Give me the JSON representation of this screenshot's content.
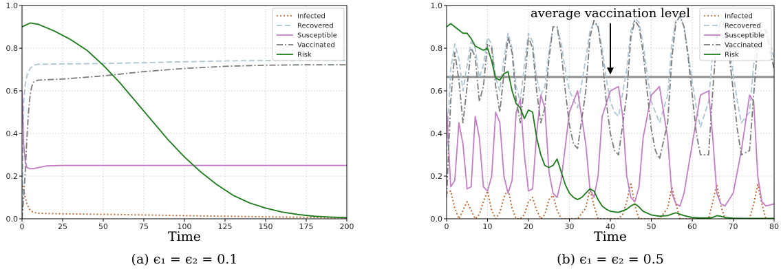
{
  "chart_data": [
    {
      "type": "line",
      "caption": "(a) ϵ₁ = ϵ₂ = 0.1",
      "xlabel": "Time",
      "ylabel": "",
      "xlim": [
        0,
        200
      ],
      "ylim": [
        0,
        1.0
      ],
      "xticks": [
        "0",
        "25",
        "50",
        "75",
        "100",
        "125",
        "150",
        "175",
        "200"
      ],
      "yticks": [
        "0.0",
        "0.2",
        "0.4",
        "0.6",
        "0.8",
        "1.0"
      ],
      "grid": true,
      "legend_position": "top-right",
      "series": [
        {
          "name": "Infected",
          "color": "#c0682f",
          "style": "dotted",
          "x": [
            0,
            1,
            2,
            3,
            5,
            7,
            10,
            15,
            20,
            30,
            50,
            75,
            100,
            125,
            150,
            175,
            200
          ],
          "y": [
            0.17,
            0.13,
            0.1,
            0.07,
            0.04,
            0.03,
            0.026,
            0.025,
            0.024,
            0.023,
            0.021,
            0.018,
            0.015,
            0.012,
            0.009,
            0.007,
            0.005
          ]
        },
        {
          "name": "Recovered",
          "color": "#a9c4d2",
          "style": "dashed",
          "x": [
            0,
            1,
            2,
            3,
            5,
            7,
            10,
            15,
            25,
            50,
            75,
            100,
            125,
            150,
            175,
            200
          ],
          "y": [
            0.0,
            0.55,
            0.63,
            0.67,
            0.705,
            0.72,
            0.725,
            0.725,
            0.726,
            0.728,
            0.732,
            0.736,
            0.74,
            0.742,
            0.742,
            0.742
          ]
        },
        {
          "name": "Susceptible",
          "color": "#c47cc4",
          "style": "solid",
          "x": [
            0,
            1,
            2,
            3,
            5,
            7,
            10,
            15,
            25,
            50,
            100,
            150,
            200
          ],
          "y": [
            0.6,
            0.35,
            0.27,
            0.24,
            0.235,
            0.235,
            0.24,
            0.248,
            0.25,
            0.25,
            0.25,
            0.25,
            0.25
          ]
        },
        {
          "name": "Vaccinated",
          "color": "#7a7a7a",
          "style": "dashdot",
          "x": [
            0,
            1,
            2,
            3,
            4,
            5,
            6,
            7,
            8,
            10,
            15,
            25,
            50,
            75,
            100,
            125,
            150,
            175,
            200
          ],
          "y": [
            0.0,
            0.1,
            0.22,
            0.38,
            0.5,
            0.58,
            0.62,
            0.64,
            0.645,
            0.65,
            0.652,
            0.655,
            0.67,
            0.69,
            0.705,
            0.715,
            0.72,
            0.722,
            0.722
          ]
        },
        {
          "name": "Risk",
          "color": "#1a7a1a",
          "style": "solid",
          "x": [
            0,
            5,
            10,
            20,
            30,
            40,
            50,
            60,
            70,
            80,
            90,
            100,
            110,
            120,
            130,
            140,
            150,
            160,
            170,
            180,
            190,
            200
          ],
          "y": [
            0.9,
            0.918,
            0.912,
            0.88,
            0.84,
            0.79,
            0.72,
            0.64,
            0.55,
            0.46,
            0.37,
            0.29,
            0.22,
            0.16,
            0.11,
            0.075,
            0.05,
            0.032,
            0.02,
            0.012,
            0.008,
            0.005
          ]
        }
      ]
    },
    {
      "type": "line",
      "caption": "(b) ϵ₁ = ϵ₂ = 0.5",
      "xlabel": "Time",
      "ylabel": "",
      "xlim": [
        0,
        80
      ],
      "ylim": [
        0,
        1.0
      ],
      "xticks": [
        "0",
        "10",
        "20",
        "30",
        "40",
        "50",
        "60",
        "70",
        "80"
      ],
      "yticks": [
        "0.0",
        "0.2",
        "0.4",
        "0.6",
        "0.8",
        "1.0"
      ],
      "grid": true,
      "legend_position": "top-right",
      "annotation": {
        "text": "average vaccination level",
        "x": 40,
        "y": 0.67
      },
      "hline": {
        "y": 0.665,
        "color": "#8f8f8f"
      },
      "series": [
        {
          "name": "Infected",
          "color": "#c0682f",
          "style": "dotted",
          "x": [
            0,
            1,
            2,
            3,
            4,
            5,
            6,
            7,
            8,
            9,
            10,
            11,
            12,
            13,
            14,
            15,
            16,
            17,
            18,
            19,
            20,
            21,
            22,
            23,
            24,
            25,
            26,
            27,
            28,
            30,
            32,
            34,
            35,
            36,
            37,
            38,
            40,
            42,
            43,
            44,
            45,
            46,
            47,
            48,
            50,
            52,
            54,
            55,
            56,
            57,
            58,
            60,
            62,
            64,
            65,
            66,
            67,
            68,
            70,
            72,
            74,
            75,
            76,
            77,
            78,
            80
          ],
          "y": [
            0.12,
            0.13,
            0.05,
            0.0,
            0.04,
            0.08,
            0.04,
            0.0,
            0.02,
            0.08,
            0.13,
            0.04,
            0.0,
            0.03,
            0.1,
            0.14,
            0.05,
            0.0,
            0.0,
            0.02,
            0.08,
            0.1,
            0.04,
            0.0,
            0.02,
            0.09,
            0.11,
            0.04,
            0.0,
            0.0,
            0.0,
            0.05,
            0.14,
            0.06,
            0.0,
            0.0,
            0.0,
            0.0,
            0.02,
            0.08,
            0.17,
            0.06,
            0.0,
            0.0,
            0.0,
            0.0,
            0.05,
            0.15,
            0.07,
            0.0,
            0.0,
            0.0,
            0.0,
            0.0,
            0.08,
            0.16,
            0.06,
            0.0,
            0.0,
            0.0,
            0.0,
            0.07,
            0.16,
            0.07,
            0.0,
            0.0
          ]
        },
        {
          "name": "Recovered",
          "color": "#a9c4d2",
          "style": "dashed",
          "x": [
            0,
            1,
            2,
            3,
            4,
            5,
            6,
            7,
            8,
            9,
            10,
            11,
            12,
            13,
            14,
            15,
            16,
            17,
            18,
            19,
            20,
            21,
            22,
            23,
            24,
            25,
            26,
            27,
            28,
            29,
            30,
            32,
            34,
            35,
            36,
            37,
            38,
            39,
            40,
            41,
            42,
            44,
            45,
            46,
            47,
            48,
            49,
            50,
            52,
            54,
            55,
            56,
            57,
            58,
            59,
            60,
            61,
            62,
            64,
            65,
            66,
            67,
            68,
            69,
            70,
            71,
            72,
            74,
            75,
            76,
            77,
            78,
            80
          ],
          "y": [
            0.3,
            0.7,
            0.82,
            0.75,
            0.6,
            0.72,
            0.83,
            0.8,
            0.66,
            0.72,
            0.85,
            0.82,
            0.66,
            0.6,
            0.75,
            0.87,
            0.8,
            0.62,
            0.55,
            0.72,
            0.87,
            0.83,
            0.66,
            0.58,
            0.62,
            0.78,
            0.9,
            0.9,
            0.82,
            0.7,
            0.6,
            0.52,
            0.75,
            0.88,
            0.92,
            0.9,
            0.8,
            0.66,
            0.55,
            0.5,
            0.48,
            0.7,
            0.88,
            0.94,
            0.92,
            0.82,
            0.68,
            0.55,
            0.45,
            0.58,
            0.82,
            0.93,
            0.95,
            0.9,
            0.78,
            0.64,
            0.52,
            0.43,
            0.55,
            0.78,
            0.92,
            0.95,
            0.92,
            0.82,
            0.68,
            0.55,
            0.45,
            0.5,
            0.72,
            0.88,
            0.93,
            0.9,
            0.75
          ]
        },
        {
          "name": "Susceptible",
          "color": "#c47cc4",
          "style": "solid",
          "x": [
            0,
            1,
            2,
            3,
            4,
            5,
            6,
            7,
            8,
            9,
            10,
            11,
            12,
            13,
            14,
            15,
            16,
            17,
            18,
            19,
            20,
            21,
            22,
            23,
            24,
            25,
            26,
            27,
            28,
            30,
            32,
            34,
            35,
            36,
            37,
            38,
            40,
            42,
            43,
            44,
            45,
            46,
            47,
            48,
            50,
            52,
            54,
            55,
            56,
            57,
            58,
            60,
            62,
            64,
            65,
            66,
            67,
            68,
            70,
            72,
            74,
            75,
            76,
            77,
            78,
            80
          ],
          "y": [
            0.52,
            0.15,
            0.18,
            0.45,
            0.35,
            0.14,
            0.15,
            0.48,
            0.38,
            0.15,
            0.13,
            0.2,
            0.5,
            0.45,
            0.2,
            0.12,
            0.18,
            0.5,
            0.56,
            0.3,
            0.13,
            0.14,
            0.4,
            0.58,
            0.52,
            0.22,
            0.12,
            0.1,
            0.18,
            0.5,
            0.6,
            0.35,
            0.14,
            0.1,
            0.2,
            0.48,
            0.6,
            0.62,
            0.48,
            0.2,
            0.1,
            0.08,
            0.15,
            0.38,
            0.58,
            0.62,
            0.38,
            0.12,
            0.07,
            0.06,
            0.12,
            0.35,
            0.58,
            0.6,
            0.38,
            0.12,
            0.07,
            0.06,
            0.12,
            0.32,
            0.58,
            0.55,
            0.2,
            0.08,
            0.06,
            0.07
          ]
        },
        {
          "name": "Vaccinated",
          "color": "#7a7a7a",
          "style": "dashdot",
          "x": [
            0,
            1,
            2,
            3,
            4,
            5,
            6,
            7,
            8,
            9,
            10,
            11,
            12,
            13,
            14,
            15,
            16,
            17,
            18,
            19,
            20,
            21,
            22,
            23,
            24,
            25,
            26,
            27,
            28,
            29,
            30,
            31,
            32,
            34,
            35,
            36,
            37,
            38,
            39,
            40,
            41,
            42,
            44,
            45,
            46,
            47,
            48,
            49,
            50,
            51,
            52,
            54,
            55,
            56,
            57,
            58,
            59,
            60,
            61,
            62,
            64,
            65,
            66,
            67,
            68,
            69,
            70,
            71,
            72,
            74,
            75,
            76,
            77,
            78,
            80
          ],
          "y": [
            0.1,
            0.55,
            0.78,
            0.65,
            0.45,
            0.62,
            0.8,
            0.76,
            0.55,
            0.62,
            0.82,
            0.8,
            0.62,
            0.5,
            0.68,
            0.85,
            0.78,
            0.56,
            0.45,
            0.62,
            0.85,
            0.8,
            0.6,
            0.45,
            0.52,
            0.75,
            0.9,
            0.9,
            0.78,
            0.6,
            0.44,
            0.35,
            0.33,
            0.6,
            0.85,
            0.93,
            0.9,
            0.76,
            0.55,
            0.4,
            0.32,
            0.3,
            0.58,
            0.85,
            0.93,
            0.9,
            0.78,
            0.6,
            0.42,
            0.32,
            0.28,
            0.45,
            0.75,
            0.92,
            0.95,
            0.9,
            0.76,
            0.58,
            0.4,
            0.3,
            0.3,
            0.6,
            0.85,
            0.93,
            0.9,
            0.78,
            0.6,
            0.42,
            0.3,
            0.32,
            0.58,
            0.82,
            0.9,
            0.88,
            0.7
          ]
        },
        {
          "name": "Risk",
          "color": "#1a7a1a",
          "style": "solid",
          "x": [
            0,
            1,
            2,
            3,
            4,
            5,
            6,
            7,
            8,
            9,
            10,
            11,
            12,
            13,
            14,
            15,
            16,
            17,
            18,
            19,
            20,
            21,
            22,
            23,
            24,
            25,
            26,
            27,
            28,
            29,
            30,
            31,
            32,
            33,
            34,
            35,
            36,
            37,
            38,
            39,
            40,
            42,
            44,
            45,
            46,
            47,
            48,
            50,
            52,
            54,
            55,
            56,
            58,
            60,
            62,
            64,
            65,
            66,
            67,
            68,
            70,
            72,
            74,
            76,
            78,
            80
          ],
          "y": [
            0.9,
            0.915,
            0.9,
            0.885,
            0.87,
            0.87,
            0.845,
            0.81,
            0.8,
            0.79,
            0.8,
            0.74,
            0.66,
            0.65,
            0.68,
            0.69,
            0.6,
            0.54,
            0.52,
            0.47,
            0.51,
            0.5,
            0.38,
            0.3,
            0.25,
            0.24,
            0.25,
            0.28,
            0.22,
            0.16,
            0.12,
            0.1,
            0.09,
            0.1,
            0.12,
            0.14,
            0.13,
            0.09,
            0.06,
            0.045,
            0.035,
            0.03,
            0.045,
            0.06,
            0.07,
            0.055,
            0.035,
            0.018,
            0.012,
            0.015,
            0.022,
            0.028,
            0.015,
            0.006,
            0.004,
            0.004,
            0.006,
            0.015,
            0.012,
            0.006,
            0.003,
            0.002,
            0.002,
            0.002,
            0.002,
            0.002
          ]
        }
      ]
    }
  ]
}
